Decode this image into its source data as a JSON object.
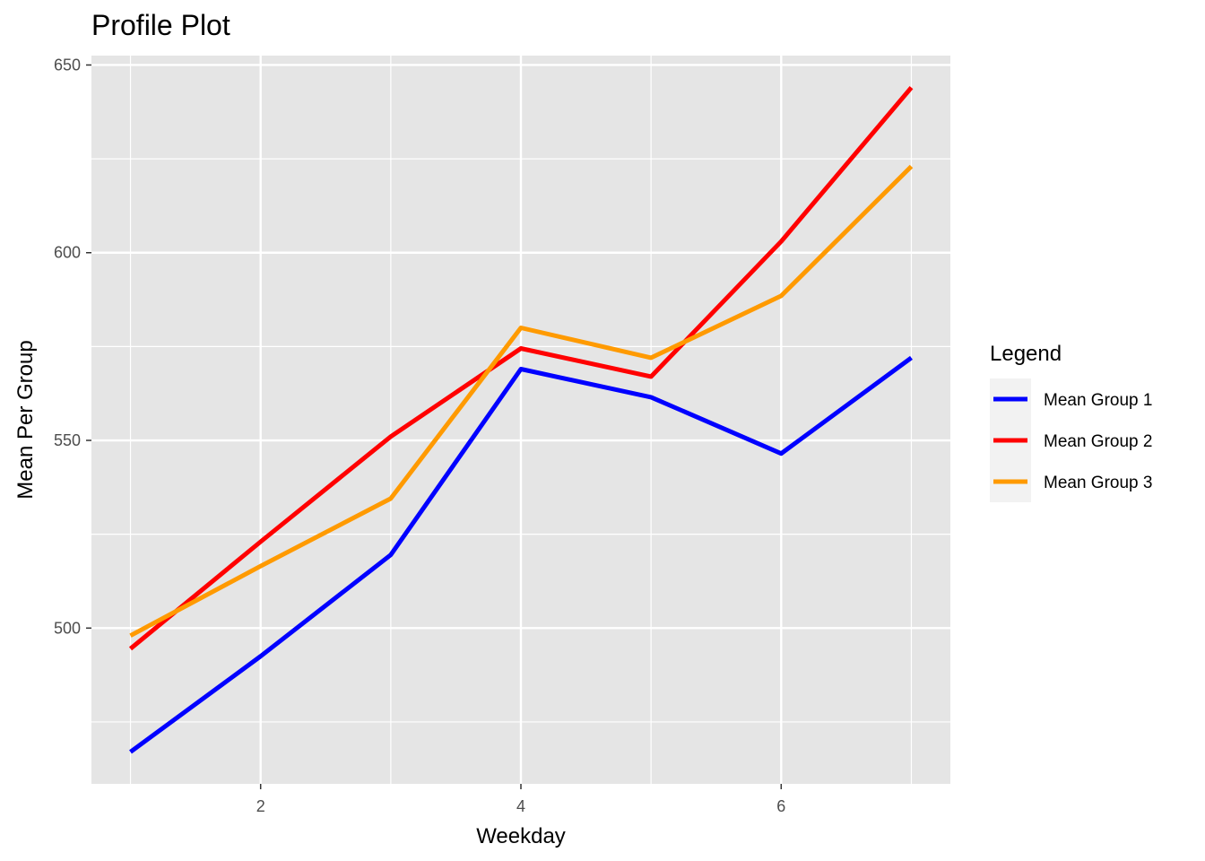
{
  "chart_data": {
    "type": "line",
    "title": "Profile Plot",
    "xlabel": "Weekday",
    "ylabel": "Mean Per Group",
    "xlim": [
      0.7,
      7.3
    ],
    "ylim": [
      458.5,
      652.5
    ],
    "x_ticks": [
      "2",
      "4",
      "6"
    ],
    "y_ticks": [
      "500",
      "550",
      "600",
      "650"
    ],
    "grid": true,
    "legend_title": "Legend",
    "legend_position": "right",
    "x": [
      1,
      2,
      3,
      4,
      5,
      6,
      7
    ],
    "series": [
      {
        "name": "Mean Group 1",
        "color": "#0000ff",
        "values": [
          467,
          492.5,
          519.5,
          569,
          561.5,
          546.5,
          572
        ]
      },
      {
        "name": "Mean Group 2",
        "color": "#ff0000",
        "values": [
          494.5,
          523,
          551,
          574.5,
          567,
          603,
          644
        ]
      },
      {
        "name": "Mean Group 3",
        "color": "#ff9a00",
        "values": [
          498,
          516.5,
          534.5,
          580,
          572,
          588.5,
          623
        ]
      }
    ]
  }
}
